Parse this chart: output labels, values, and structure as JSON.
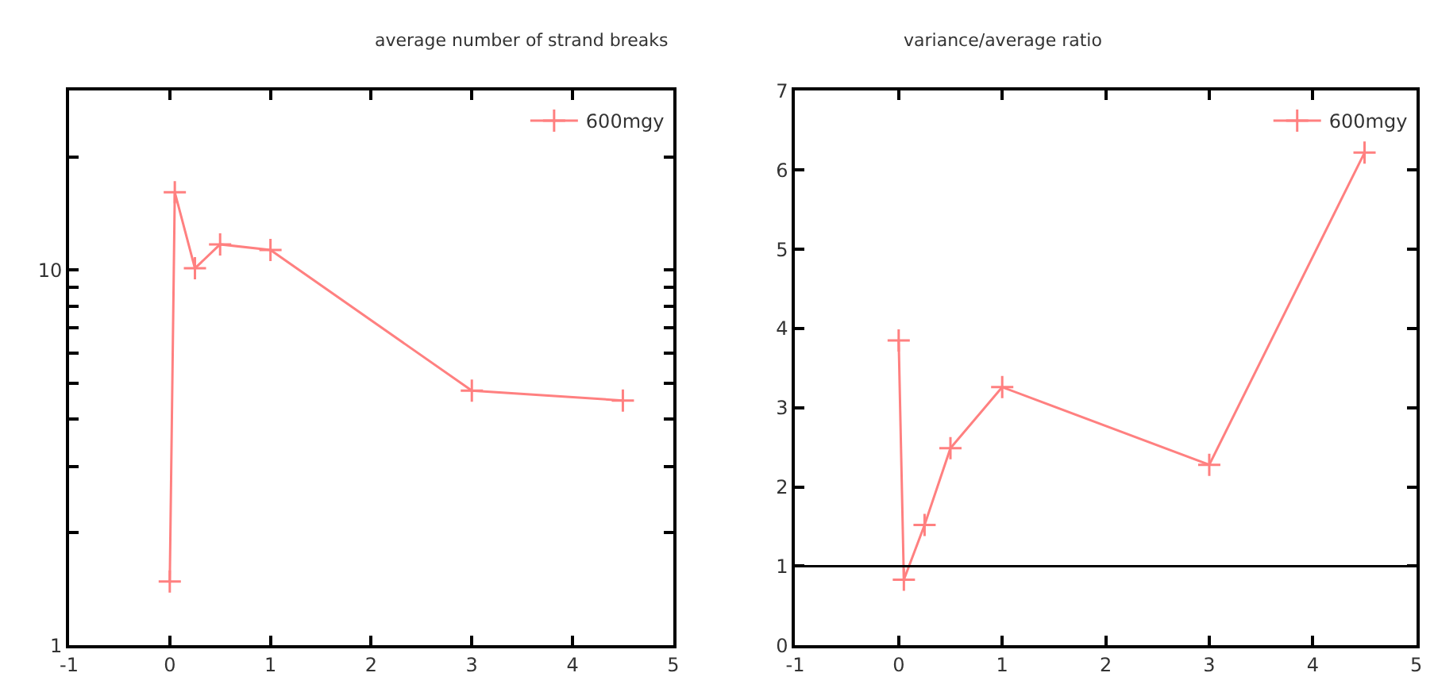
{
  "chart_data": [
    {
      "type": "line",
      "title": "average number of strand breaks",
      "x": [
        0,
        0.05,
        0.25,
        0.5,
        1,
        3,
        4.5
      ],
      "series": [
        {
          "name": "600mgy",
          "color": "#ff8080",
          "values": [
            1.48,
            16.1,
            10.1,
            11.7,
            11.3,
            4.77,
            4.49
          ]
        }
      ],
      "xlim": [
        -1,
        5
      ],
      "xticks": [
        -1,
        0,
        1,
        2,
        3,
        4,
        5
      ],
      "ylim": [
        1,
        30
      ],
      "log": true,
      "yticks": [
        1,
        {
          "value": 2,
          "label": null
        },
        {
          "value": 3,
          "label": null
        },
        {
          "value": 4,
          "label": null
        },
        {
          "value": 5,
          "label": null
        },
        {
          "value": 6,
          "label": null
        },
        {
          "value": 7,
          "label": null
        },
        {
          "value": 8,
          "label": null
        },
        {
          "value": 9,
          "label": null
        },
        10,
        {
          "value": 20,
          "label": null
        }
      ],
      "marker": "cross",
      "line_style": "solid",
      "legend": "top right"
    },
    {
      "type": "line",
      "title": "variance/average ratio",
      "x": [
        0,
        0.05,
        0.25,
        0.5,
        1,
        3,
        4.5
      ],
      "series": [
        {
          "name": "600mgy",
          "color": "#ff8080",
          "values": [
            3.85,
            0.83,
            1.52,
            2.49,
            3.26,
            2.28,
            6.22
          ]
        }
      ],
      "xlim": [
        -1,
        5
      ],
      "xticks": [
        -1,
        0,
        1,
        2,
        3,
        4,
        5
      ],
      "ylim": [
        0,
        7
      ],
      "yticks": [
        0,
        1,
        2,
        3,
        4,
        5,
        6,
        7
      ],
      "ref_lines": [
        {
          "axis": "y",
          "value": 1,
          "color": "#000000"
        }
      ],
      "marker": "cross",
      "line_style": "solid",
      "legend": "top right"
    }
  ]
}
